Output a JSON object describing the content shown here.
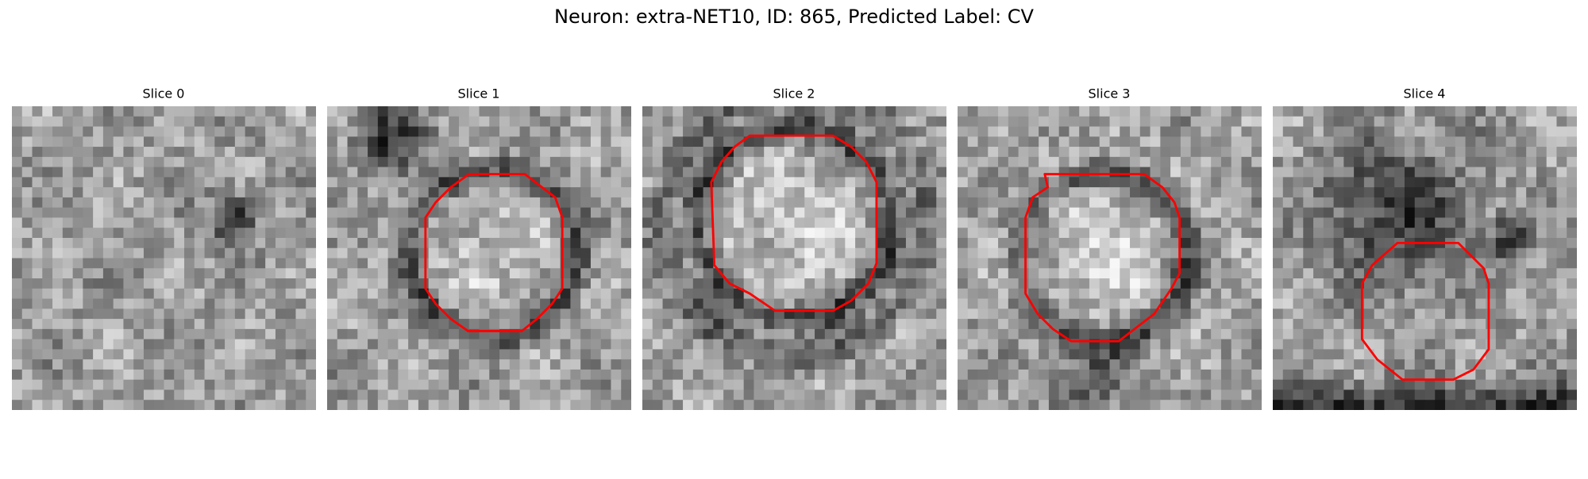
{
  "title": "Neuron: extra-NET10, ID: 865, Predicted Label: CV",
  "panels": [
    {
      "title": "Slice 0"
    },
    {
      "title": "Slice 1"
    },
    {
      "title": "Slice 2"
    },
    {
      "title": "Slice 3"
    },
    {
      "title": "Slice 4"
    }
  ]
}
